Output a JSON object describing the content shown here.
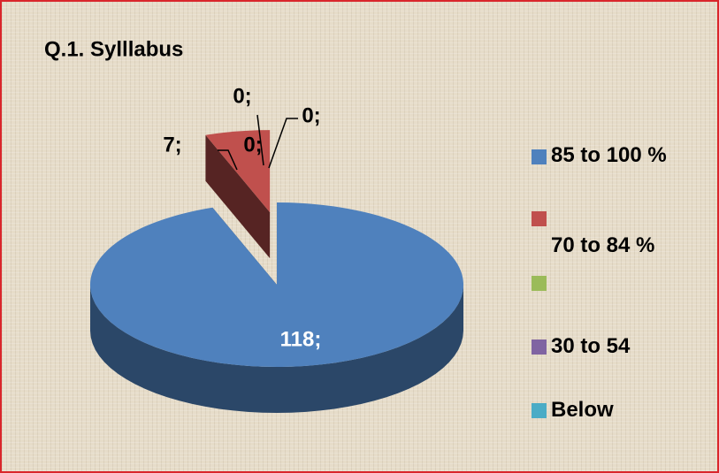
{
  "chart_data": {
    "type": "pie",
    "title": "Q.1. Sylllabus",
    "categories": [
      "85 to 100 %",
      "70 to 84 %",
      null,
      "30 to 54",
      "Below"
    ],
    "values": [
      118,
      7,
      0,
      0,
      0
    ],
    "value_labels": [
      "118;",
      "7;",
      "0;",
      "0;",
      "0;"
    ],
    "colors": [
      "#4f81bd",
      "#c0504d",
      "#9bbb59",
      "#8064a2",
      "#4bacc6"
    ],
    "legend": "right"
  }
}
